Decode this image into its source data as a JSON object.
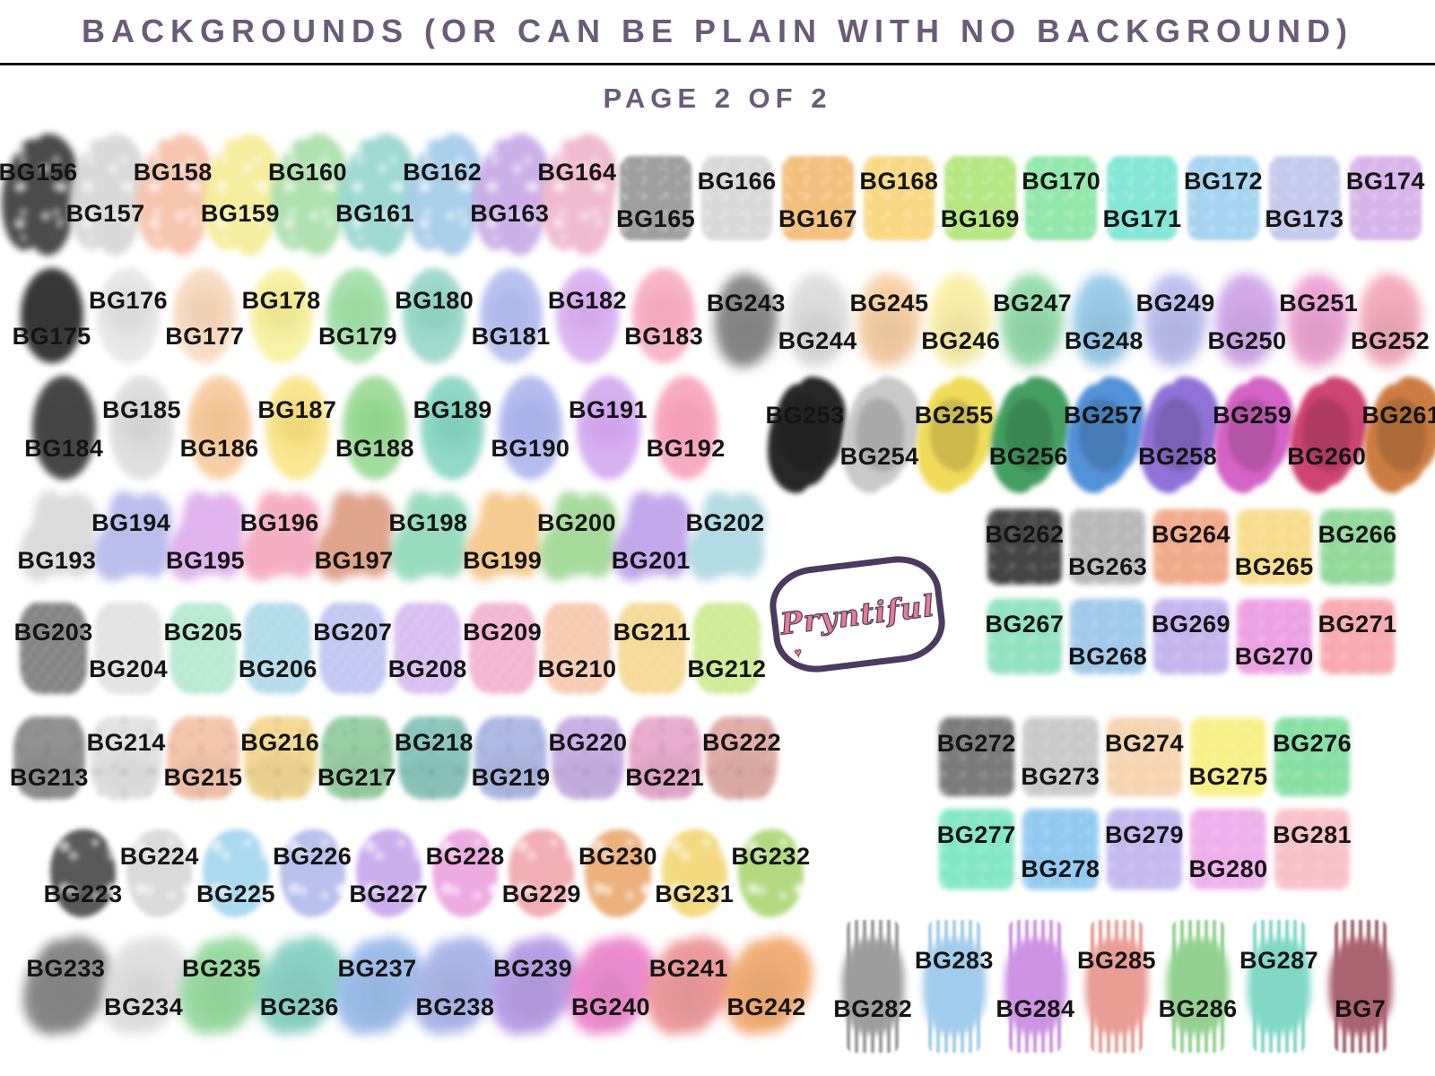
{
  "header": {
    "title": "BACKGROUNDS (OR CAN BE PLAIN WITH NO BACKGROUND)",
    "page": "PAGE 2 OF 2"
  },
  "logo": {
    "text": "Pryntiful",
    "heart": "♥",
    "fill": "#e87b95",
    "outline": "#4c3a60"
  },
  "colors": {
    "title": "#6b5b79",
    "label": "#141414",
    "divider": "#141414",
    "background": "#ffffff"
  },
  "groups": [
    {
      "id": "row1-left",
      "style": "splatter",
      "label_start": "high",
      "items": [
        {
          "label": "BG156",
          "color": "#3c3c3c"
        },
        {
          "label": "BG157",
          "color": "#d6d6d6"
        },
        {
          "label": "BG158",
          "color": "#f6c2a9"
        },
        {
          "label": "BG159",
          "color": "#f6ec96"
        },
        {
          "label": "BG160",
          "color": "#a9e0a9"
        },
        {
          "label": "BG161",
          "color": "#96d6cf"
        },
        {
          "label": "BG162",
          "color": "#a3cbe8"
        },
        {
          "label": "BG163",
          "color": "#c7a9e4"
        },
        {
          "label": "BG164",
          "color": "#eeb6cc"
        }
      ]
    },
    {
      "id": "row1-right",
      "style": "sponge",
      "label_start": "low",
      "items": [
        {
          "label": "BG165",
          "color": "#9a9a9a"
        },
        {
          "label": "BG166",
          "color": "#d8d8d8"
        },
        {
          "label": "BG167",
          "color": "#f3bd76"
        },
        {
          "label": "BG168",
          "color": "#f7d77e"
        },
        {
          "label": "BG169",
          "color": "#b2e67c"
        },
        {
          "label": "BG170",
          "color": "#8de6a6"
        },
        {
          "label": "BG171",
          "color": "#7ee5d4"
        },
        {
          "label": "BG172",
          "color": "#a2d2f0"
        },
        {
          "label": "BG173",
          "color": "#c2c7ed"
        },
        {
          "label": "BG174",
          "color": "#d7b1e8"
        }
      ]
    },
    {
      "id": "row2-left",
      "style": "oval",
      "label_start": "low",
      "items": [
        {
          "label": "BG175",
          "color": "#2f2f2f"
        },
        {
          "label": "BG176",
          "color": "#e7e7e7"
        },
        {
          "label": "BG177",
          "color": "#f8dcc2"
        },
        {
          "label": "BG178",
          "color": "#f9f2a4"
        },
        {
          "label": "BG179",
          "color": "#a7e2ac"
        },
        {
          "label": "BG180",
          "color": "#9cd8cc"
        },
        {
          "label": "BG181",
          "color": "#b7c1ef"
        },
        {
          "label": "BG182",
          "color": "#dab3f0"
        },
        {
          "label": "BG183",
          "color": "#f8b1c6"
        }
      ]
    },
    {
      "id": "row2-right",
      "style": "cloud",
      "label_start": "high",
      "items": [
        {
          "label": "BG243",
          "color": "#7e7e7e"
        },
        {
          "label": "BG244",
          "color": "#dadada"
        },
        {
          "label": "BG245",
          "color": "#f6cd9d"
        },
        {
          "label": "BG246",
          "color": "#faeea1"
        },
        {
          "label": "BG247",
          "color": "#8ddaa3"
        },
        {
          "label": "BG248",
          "color": "#90c7e6"
        },
        {
          "label": "BG249",
          "color": "#b7baeb"
        },
        {
          "label": "BG250",
          "color": "#cda1e6"
        },
        {
          "label": "BG251",
          "color": "#ed9dd2"
        },
        {
          "label": "BG252",
          "color": "#f2a4b6"
        }
      ]
    },
    {
      "id": "row3-left",
      "style": "oval",
      "label_start": "low",
      "items": [
        {
          "label": "BG184",
          "color": "#3e3e3e"
        },
        {
          "label": "BG185",
          "color": "#dedede"
        },
        {
          "label": "BG186",
          "color": "#f8cda1"
        },
        {
          "label": "BG187",
          "color": "#fae68d"
        },
        {
          "label": "BG188",
          "color": "#9edd99"
        },
        {
          "label": "BG189",
          "color": "#8dd7c5"
        },
        {
          "label": "BG190",
          "color": "#b1bbee"
        },
        {
          "label": "BG191",
          "color": "#d5adf0"
        },
        {
          "label": "BG192",
          "color": "#f8a8c0"
        }
      ]
    },
    {
      "id": "row3-right",
      "style": "paint",
      "label_start": "high",
      "items": [
        {
          "label": "BG253",
          "color": "#1f1f1f"
        },
        {
          "label": "BG254",
          "color": "#c7c7c7"
        },
        {
          "label": "BG255",
          "color": "#f0db53"
        },
        {
          "label": "BG256",
          "color": "#3d9c5a"
        },
        {
          "label": "BG257",
          "color": "#4d8dd7"
        },
        {
          "label": "BG258",
          "color": "#8d6dd7"
        },
        {
          "label": "BG259",
          "color": "#d25dc2"
        },
        {
          "label": "BG260",
          "color": "#cd3d6d"
        },
        {
          "label": "BG261",
          "color": "#cb783b"
        }
      ]
    },
    {
      "id": "row4-left",
      "style": "splotch",
      "label_start": "low",
      "items": [
        {
          "label": "BG193",
          "color": "#d1d1d1"
        },
        {
          "label": "BG194",
          "color": "#a7ace6"
        },
        {
          "label": "BG195",
          "color": "#d79ee6"
        },
        {
          "label": "BG196",
          "color": "#f398b3"
        },
        {
          "label": "BG197",
          "color": "#d78b6d"
        },
        {
          "label": "BG198",
          "color": "#7dd2ac"
        },
        {
          "label": "BG199",
          "color": "#f3bd74"
        },
        {
          "label": "BG200",
          "color": "#8ed281"
        },
        {
          "label": "BG201",
          "color": "#b390e6"
        },
        {
          "label": "BG202",
          "color": "#9dd2de"
        }
      ]
    },
    {
      "id": "row4-right-a",
      "style": "crayon",
      "label_start": "high",
      "items": [
        {
          "label": "BG262",
          "color": "#3a3a3a"
        },
        {
          "label": "BG263",
          "color": "#b6b6b6"
        },
        {
          "label": "BG264",
          "color": "#f0a784"
        },
        {
          "label": "BG265",
          "color": "#f7db88"
        },
        {
          "label": "BG266",
          "color": "#8dd796"
        }
      ]
    },
    {
      "id": "row4-right-b",
      "style": "crayon",
      "label_start": "high",
      "items": [
        {
          "label": "BG267",
          "color": "#8de1be"
        },
        {
          "label": "BG268",
          "color": "#9cc7e8"
        },
        {
          "label": "BG269",
          "color": "#c1b1ec"
        },
        {
          "label": "BG270",
          "color": "#ec9de1"
        },
        {
          "label": "BG271",
          "color": "#f7a6ab"
        }
      ]
    },
    {
      "id": "row5-left",
      "style": "leaf",
      "label_start": "high",
      "items": [
        {
          "label": "BG203",
          "color": "#6d6d6d"
        },
        {
          "label": "BG204",
          "color": "#dedede"
        },
        {
          "label": "BG205",
          "color": "#ace6ca"
        },
        {
          "label": "BG206",
          "color": "#a6d6e8"
        },
        {
          "label": "BG207",
          "color": "#b6beee"
        },
        {
          "label": "BG208",
          "color": "#d1b3ee"
        },
        {
          "label": "BG209",
          "color": "#f1a8ca"
        },
        {
          "label": "BG210",
          "color": "#f5c2a3"
        },
        {
          "label": "BG211",
          "color": "#f3d385"
        },
        {
          "label": "BG212",
          "color": "#c4e883"
        }
      ]
    },
    {
      "id": "row6-left",
      "style": "speckle",
      "label_start": "low",
      "items": [
        {
          "label": "BG213",
          "color": "#888888"
        },
        {
          "label": "BG214",
          "color": "#e1e1e1"
        },
        {
          "label": "BG215",
          "color": "#f4c3a6"
        },
        {
          "label": "BG216",
          "color": "#f4d78d"
        },
        {
          "label": "BG217",
          "color": "#91cd9c"
        },
        {
          "label": "BG218",
          "color": "#83c4ba"
        },
        {
          "label": "BG219",
          "color": "#a9b6e2"
        },
        {
          "label": "BG220",
          "color": "#c7ace2"
        },
        {
          "label": "BG221",
          "color": "#e6a6ca"
        },
        {
          "label": "BG222",
          "color": "#e0a9a2"
        }
      ]
    },
    {
      "id": "row6-right-a",
      "style": "crayon",
      "label_start": "high",
      "items": [
        {
          "label": "BG272",
          "color": "#737373"
        },
        {
          "label": "BG273",
          "color": "#c7c7c7"
        },
        {
          "label": "BG274",
          "color": "#f5d2ac"
        },
        {
          "label": "BG275",
          "color": "#f9ef82"
        },
        {
          "label": "BG276",
          "color": "#81de9e"
        }
      ]
    },
    {
      "id": "row6-right-b",
      "style": "crayon",
      "label_start": "high",
      "items": [
        {
          "label": "BG277",
          "color": "#7de6c4"
        },
        {
          "label": "BG278",
          "color": "#8dc7f0"
        },
        {
          "label": "BG279",
          "color": "#c1b6ee"
        },
        {
          "label": "BG280",
          "color": "#eeacea"
        },
        {
          "label": "BG281",
          "color": "#f7bfc6"
        }
      ]
    },
    {
      "id": "row7-left",
      "style": "bubble",
      "label_start": "low",
      "items": [
        {
          "label": "BG223",
          "color": "#484848"
        },
        {
          "label": "BG224",
          "color": "#d6d6d6"
        },
        {
          "label": "BG225",
          "color": "#a3d6ed"
        },
        {
          "label": "BG226",
          "color": "#b1baea"
        },
        {
          "label": "BG227",
          "color": "#c7a6ea"
        },
        {
          "label": "BG228",
          "color": "#eba3de"
        },
        {
          "label": "BG229",
          "color": "#f0a6ab"
        },
        {
          "label": "BG230",
          "color": "#eaa970"
        },
        {
          "label": "BG231",
          "color": "#f2d774"
        },
        {
          "label": "BG232",
          "color": "#a9d773"
        }
      ]
    },
    {
      "id": "row8-left",
      "style": "puff",
      "label_start": "high",
      "items": [
        {
          "label": "BG233",
          "color": "#787878"
        },
        {
          "label": "BG234",
          "color": "#dcdcdc"
        },
        {
          "label": "BG235",
          "color": "#8dd796"
        },
        {
          "label": "BG236",
          "color": "#7dcdbe"
        },
        {
          "label": "BG237",
          "color": "#91b6e8"
        },
        {
          "label": "BG238",
          "color": "#a1aee6"
        },
        {
          "label": "BG239",
          "color": "#af92e2"
        },
        {
          "label": "BG240",
          "color": "#ea7dc8"
        },
        {
          "label": "BG241",
          "color": "#ec8d8d"
        },
        {
          "label": "BG242",
          "color": "#f0a364"
        }
      ]
    },
    {
      "id": "row8-right",
      "style": "drip",
      "label_start": "low",
      "items": [
        {
          "label": "BG282",
          "color": "#8d8d8d"
        },
        {
          "label": "BG283",
          "color": "#91c4e8"
        },
        {
          "label": "BG284",
          "color": "#c481de"
        },
        {
          "label": "BG285",
          "color": "#e68d83"
        },
        {
          "label": "BG286",
          "color": "#81ca7d"
        },
        {
          "label": "BG287",
          "color": "#6dd2be"
        },
        {
          "label": "BG7",
          "color": "#9c4858"
        }
      ]
    }
  ]
}
